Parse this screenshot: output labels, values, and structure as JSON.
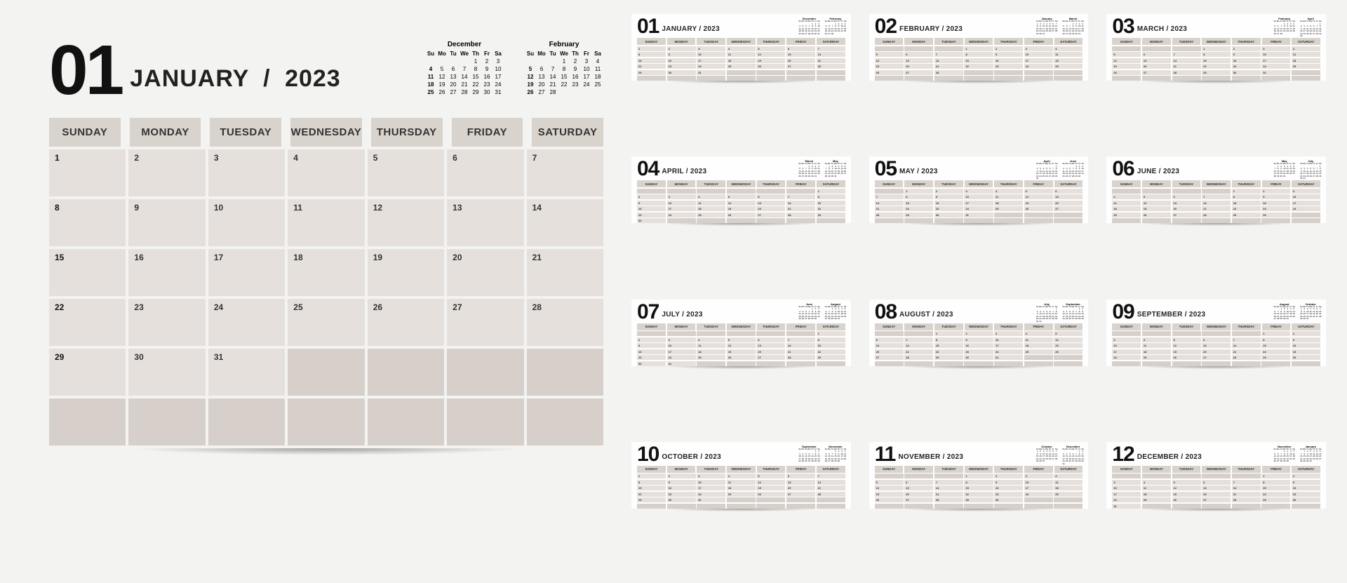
{
  "year": "2023",
  "dow_full": [
    "SUNDAY",
    "MONDAY",
    "TUESDAY",
    "WEDNESDAY",
    "THURSDAY",
    "FRIDAY",
    "SATURDAY"
  ],
  "dow_short": [
    "Su",
    "Mo",
    "Tu",
    "We",
    "Th",
    "Fr",
    "Sa"
  ],
  "colors": {
    "page_bg": "#f3f3f2",
    "header_cell": "#d9d3cd",
    "day_cell": "#e5e0db",
    "empty_cell": "#d7d0ca",
    "text": "#333333",
    "num": "#111111"
  },
  "main": {
    "num": "01",
    "name": "JANUARY",
    "start": 0,
    "days": 31,
    "rows": 6,
    "prev": {
      "name": "December",
      "start": 4,
      "days": 31,
      "sunday_bold": [
        4,
        11,
        18,
        25
      ]
    },
    "next": {
      "name": "February",
      "start": 3,
      "days": 28,
      "sunday_bold": [
        5,
        12,
        19,
        26
      ]
    }
  },
  "months": [
    {
      "num": "01",
      "name": "JANUARY",
      "start": 0,
      "days": 31,
      "rows": 6,
      "prev": {
        "name": "December",
        "start": 4,
        "days": 31
      },
      "next": {
        "name": "February",
        "start": 3,
        "days": 28
      }
    },
    {
      "num": "02",
      "name": "FEBRUARY",
      "start": 3,
      "days": 28,
      "rows": 6,
      "prev": {
        "name": "January",
        "start": 0,
        "days": 31
      },
      "next": {
        "name": "March",
        "start": 3,
        "days": 31
      }
    },
    {
      "num": "03",
      "name": "MARCH",
      "start": 3,
      "days": 31,
      "rows": 6,
      "prev": {
        "name": "February",
        "start": 3,
        "days": 28
      },
      "next": {
        "name": "April",
        "start": 6,
        "days": 30
      }
    },
    {
      "num": "04",
      "name": "APRIL",
      "start": 6,
      "days": 30,
      "rows": 6,
      "prev": {
        "name": "March",
        "start": 3,
        "days": 31
      },
      "next": {
        "name": "May",
        "start": 1,
        "days": 31
      }
    },
    {
      "num": "05",
      "name": "MAY",
      "start": 1,
      "days": 31,
      "rows": 6,
      "prev": {
        "name": "April",
        "start": 6,
        "days": 30
      },
      "next": {
        "name": "June",
        "start": 4,
        "days": 30
      }
    },
    {
      "num": "06",
      "name": "JUNE",
      "start": 4,
      "days": 30,
      "rows": 6,
      "prev": {
        "name": "May",
        "start": 1,
        "days": 31
      },
      "next": {
        "name": "July",
        "start": 6,
        "days": 31
      }
    },
    {
      "num": "07",
      "name": "JULY",
      "start": 6,
      "days": 31,
      "rows": 6,
      "prev": {
        "name": "June",
        "start": 4,
        "days": 30
      },
      "next": {
        "name": "August",
        "start": 2,
        "days": 31
      }
    },
    {
      "num": "08",
      "name": "AUGUST",
      "start": 2,
      "days": 31,
      "rows": 6,
      "prev": {
        "name": "July",
        "start": 6,
        "days": 31
      },
      "next": {
        "name": "September",
        "start": 5,
        "days": 30
      }
    },
    {
      "num": "09",
      "name": "SEPTEMBER",
      "start": 5,
      "days": 30,
      "rows": 6,
      "prev": {
        "name": "August",
        "start": 2,
        "days": 31
      },
      "next": {
        "name": "October",
        "start": 0,
        "days": 31
      }
    },
    {
      "num": "10",
      "name": "OCTOBER",
      "start": 0,
      "days": 31,
      "rows": 6,
      "prev": {
        "name": "September",
        "start": 5,
        "days": 30
      },
      "next": {
        "name": "November",
        "start": 3,
        "days": 30
      }
    },
    {
      "num": "11",
      "name": "NOVEMBER",
      "start": 3,
      "days": 30,
      "rows": 6,
      "prev": {
        "name": "October",
        "start": 0,
        "days": 31
      },
      "next": {
        "name": "December",
        "start": 5,
        "days": 31
      }
    },
    {
      "num": "12",
      "name": "DECEMBER",
      "start": 5,
      "days": 31,
      "rows": 6,
      "prev": {
        "name": "November",
        "start": 3,
        "days": 30
      },
      "next": {
        "name": "January",
        "start": 1,
        "days": 31
      }
    }
  ]
}
